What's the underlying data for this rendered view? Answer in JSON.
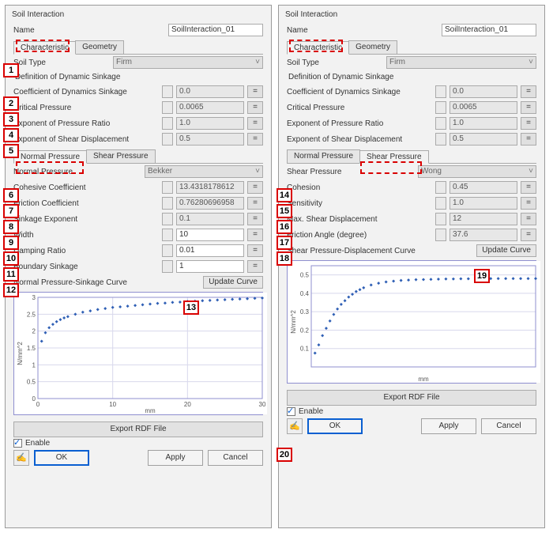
{
  "panels": [
    {
      "title": "Soil Interaction",
      "name_label": "Name",
      "name_value": "SoilInteraction_01",
      "top_tabs": [
        "Characteristic",
        "Geometry"
      ],
      "active_top_tab": 0,
      "soil_type_label": "Soil Type",
      "soil_type_value": "Firm",
      "dyn_heading": "Definition of Dynamic Sinkage",
      "dyn_rows": [
        {
          "label": "Coefficient of Dynamics Sinkage",
          "value": "0.0"
        },
        {
          "label": "Critical Pressure",
          "value": "0.0065"
        },
        {
          "label": "Exponent of Pressure Ratio",
          "value": "1.0"
        },
        {
          "label": "Exponent of Shear Displacement",
          "value": "0.5"
        }
      ],
      "press_tabs": [
        "Normal Pressure",
        "Shear Pressure"
      ],
      "active_press_tab": 0,
      "model_label": "Normal Pressure",
      "model_value": "Bekker",
      "param_rows": [
        {
          "label": "Cohesive Coefficient",
          "value": "13.4318178612",
          "readonly": true
        },
        {
          "label": "Friction Coefficient",
          "value": "0.76280696958",
          "readonly": true
        },
        {
          "label": "Sinkage Exponent",
          "value": "0.1",
          "readonly": true
        },
        {
          "label": "Width",
          "value": "10",
          "readonly": false
        },
        {
          "label": "Damping Ratio",
          "value": "0.01",
          "readonly": false
        },
        {
          "label": "Boundary Sinkage",
          "value": "1",
          "readonly": false
        }
      ],
      "curve_label": "Normal Pressure-Sinkage Curve",
      "update_label": "Update Curve",
      "export_label": "Export RDF File",
      "chart": {
        "y_label": "N/mm^2",
        "x_label": "mm",
        "xticks": [
          0,
          10,
          20,
          30
        ],
        "yticks": [
          0,
          0.5,
          1,
          1.5,
          2,
          2.5,
          3
        ],
        "ylim": [
          0,
          3
        ],
        "xlim": [
          0,
          30
        ],
        "point_color": "#2f5fb5",
        "grid_color": "#d8d8ec",
        "border_color": "#8f8fcf",
        "bg": "#ffffff",
        "points_x": [
          0.5,
          1,
          1.5,
          2,
          2.5,
          3,
          3.5,
          4,
          5,
          6,
          7,
          8,
          9,
          10,
          11,
          12,
          13,
          14,
          15,
          16,
          17,
          18,
          19,
          20,
          21,
          22,
          23,
          24,
          25,
          26,
          27,
          28,
          29,
          30
        ],
        "points_y": [
          1.7,
          1.95,
          2.1,
          2.2,
          2.28,
          2.34,
          2.39,
          2.43,
          2.5,
          2.56,
          2.6,
          2.64,
          2.67,
          2.7,
          2.72,
          2.74,
          2.76,
          2.78,
          2.8,
          2.82,
          2.83,
          2.85,
          2.86,
          2.88,
          2.89,
          2.9,
          2.91,
          2.92,
          2.93,
          2.94,
          2.95,
          2.96,
          2.97,
          2.98
        ]
      }
    },
    {
      "title": "Soil Interaction",
      "name_label": "Name",
      "name_value": "SoilInteraction_01",
      "top_tabs": [
        "Characteristic",
        "Geometry"
      ],
      "active_top_tab": 0,
      "soil_type_label": "Soil Type",
      "soil_type_value": "Firm",
      "dyn_heading": "Definition of Dynamic Sinkage",
      "dyn_rows": [
        {
          "label": "Coefficient of Dynamics Sinkage",
          "value": "0.0"
        },
        {
          "label": "Critical Pressure",
          "value": "0.0065"
        },
        {
          "label": "Exponent of Pressure Ratio",
          "value": "1.0"
        },
        {
          "label": "Exponent of Shear Displacement",
          "value": "0.5"
        }
      ],
      "press_tabs": [
        "Normal Pressure",
        "Shear Pressure"
      ],
      "active_press_tab": 1,
      "model_label": "Shear Pressure",
      "model_value": "Wong",
      "param_rows": [
        {
          "label": "Cohesion",
          "value": "0.45",
          "readonly": true
        },
        {
          "label": "Sensitivity",
          "value": "1.0",
          "readonly": true
        },
        {
          "label": "Max. Shear Displacement",
          "value": "12",
          "readonly": true
        },
        {
          "label": "Friction Angle (degree)",
          "value": "37.6",
          "readonly": true
        }
      ],
      "curve_label": "Shear Pressure-Displacement Curve",
      "update_label": "Update Curve",
      "export_label": "Export RDF File",
      "chart": {
        "y_label": "N/mm^2",
        "x_label": "mm",
        "xticks": [],
        "yticks": [
          0.1,
          0.2,
          0.3,
          0.4,
          0.5
        ],
        "ylim": [
          0,
          0.55
        ],
        "xlim": [
          0,
          30
        ],
        "point_color": "#2f5fb5",
        "grid_color": "#d8d8ec",
        "border_color": "#8f8fcf",
        "bg": "#ffffff",
        "points_x": [
          0.5,
          1,
          1.5,
          2,
          2.5,
          3,
          3.5,
          4,
          4.5,
          5,
          5.5,
          6,
          6.5,
          7,
          8,
          9,
          10,
          11,
          12,
          13,
          14,
          15,
          16,
          17,
          18,
          19,
          20,
          21,
          22,
          23,
          24,
          25,
          26,
          27,
          28,
          29,
          30
        ],
        "points_y": [
          0.075,
          0.12,
          0.17,
          0.21,
          0.25,
          0.285,
          0.315,
          0.34,
          0.36,
          0.38,
          0.395,
          0.41,
          0.42,
          0.43,
          0.445,
          0.455,
          0.462,
          0.466,
          0.47,
          0.472,
          0.474,
          0.475,
          0.476,
          0.477,
          0.478,
          0.478,
          0.479,
          0.479,
          0.479,
          0.48,
          0.48,
          0.48,
          0.48,
          0.48,
          0.48,
          0.48,
          0.48
        ]
      }
    }
  ],
  "enable_label": "Enable",
  "buttons": {
    "ok": "OK",
    "apply": "Apply",
    "cancel": "Cancel"
  },
  "numbers_left": [
    1,
    2,
    3,
    4,
    5,
    6,
    7,
    8,
    9,
    10,
    11,
    12,
    13
  ],
  "numbers_right": [
    14,
    15,
    16,
    17,
    18,
    19,
    20
  ]
}
